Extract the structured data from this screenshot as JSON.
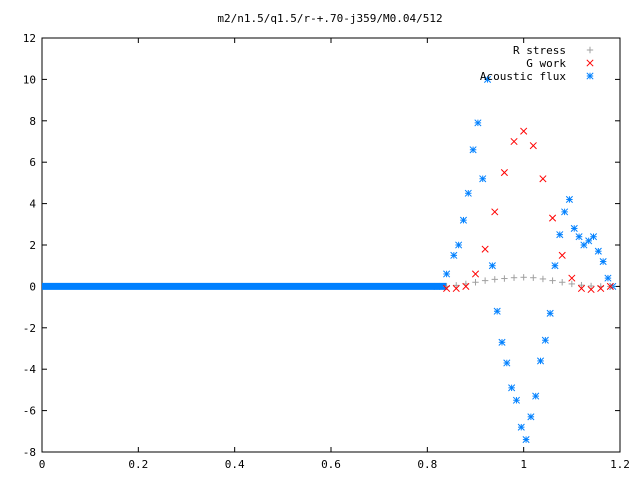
{
  "chart_data": {
    "type": "scatter",
    "title": "m2/n1.5/q1.5/r-+.70-j359/M0.04/512",
    "xlabel": "",
    "ylabel": "",
    "xlim": [
      0,
      1.2
    ],
    "ylim": [
      -8,
      12
    ],
    "x_ticks": [
      "0",
      "0.2",
      "0.4",
      "0.6",
      "0.8",
      "1",
      "1.2"
    ],
    "y_ticks": [
      "-8",
      "-6",
      "-4",
      "-2",
      "0",
      "2",
      "4",
      "6",
      "8",
      "10",
      "12"
    ],
    "grid": false,
    "legend_position": "top-right",
    "series": [
      {
        "name": "R stress",
        "marker": "plus",
        "color": "#a0a0a0",
        "x": [
          0.84,
          0.86,
          0.88,
          0.9,
          0.92,
          0.94,
          0.96,
          0.98,
          1.0,
          1.02,
          1.04,
          1.06,
          1.08,
          1.1,
          1.12,
          1.14,
          1.16,
          1.18
        ],
        "y": [
          0.0,
          0.05,
          0.12,
          0.2,
          0.28,
          0.34,
          0.38,
          0.42,
          0.44,
          0.42,
          0.36,
          0.28,
          0.2,
          0.12,
          0.06,
          0.02,
          0.0,
          0.0
        ]
      },
      {
        "name": "G work",
        "marker": "cross",
        "color": "#ff0000",
        "x": [
          0.84,
          0.86,
          0.88,
          0.9,
          0.92,
          0.94,
          0.96,
          0.98,
          1.0,
          1.02,
          1.04,
          1.06,
          1.08,
          1.1,
          1.12,
          1.14,
          1.16,
          1.18
        ],
        "y": [
          -0.1,
          -0.1,
          0.0,
          0.6,
          1.8,
          3.6,
          5.5,
          7.0,
          7.5,
          6.8,
          5.2,
          3.3,
          1.5,
          0.4,
          -0.1,
          -0.15,
          -0.1,
          0.0
        ]
      },
      {
        "name": "Acoustic flux",
        "marker": "asterisk",
        "color": "#0080ff",
        "x": [
          0.82,
          0.84,
          0.855,
          0.865,
          0.875,
          0.885,
          0.895,
          0.905,
          0.915,
          0.925,
          0.935,
          0.945,
          0.955,
          0.965,
          0.975,
          0.985,
          0.995,
          1.005,
          1.015,
          1.025,
          1.035,
          1.045,
          1.055,
          1.065,
          1.075,
          1.085,
          1.095,
          1.105,
          1.115,
          1.125,
          1.135,
          1.145,
          1.155,
          1.165,
          1.175,
          1.185
        ],
        "y": [
          0.0,
          0.6,
          1.5,
          2.0,
          3.2,
          4.5,
          6.6,
          7.9,
          5.2,
          10.0,
          1.0,
          -1.2,
          -2.7,
          -3.7,
          -4.9,
          -5.5,
          -6.8,
          -7.4,
          -6.3,
          -5.3,
          -3.6,
          -2.6,
          -1.3,
          1.0,
          2.5,
          3.6,
          4.2,
          2.8,
          2.4,
          2.0,
          2.2,
          2.4,
          1.7,
          1.2,
          0.4,
          0.0
        ]
      }
    ]
  }
}
